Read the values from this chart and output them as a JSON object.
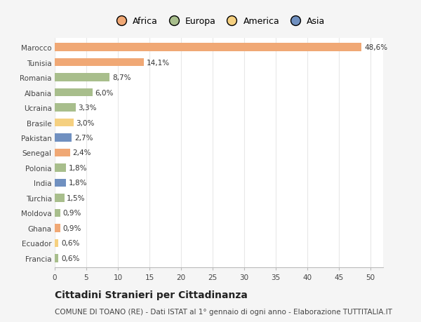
{
  "countries": [
    "Marocco",
    "Tunisia",
    "Romania",
    "Albania",
    "Ucraina",
    "Brasile",
    "Pakistan",
    "Senegal",
    "Polonia",
    "India",
    "Turchia",
    "Moldova",
    "Ghana",
    "Ecuador",
    "Francia"
  ],
  "values": [
    48.6,
    14.1,
    8.7,
    6.0,
    3.3,
    3.0,
    2.7,
    2.4,
    1.8,
    1.8,
    1.5,
    0.9,
    0.9,
    0.6,
    0.6
  ],
  "labels": [
    "48,6%",
    "14,1%",
    "8,7%",
    "6,0%",
    "3,3%",
    "3,0%",
    "2,7%",
    "2,4%",
    "1,8%",
    "1,8%",
    "1,5%",
    "0,9%",
    "0,9%",
    "0,6%",
    "0,6%"
  ],
  "colors": [
    "#F0A875",
    "#F0A875",
    "#A8BE8C",
    "#A8BE8C",
    "#A8BE8C",
    "#F5D080",
    "#7090C0",
    "#F0A875",
    "#A8BE8C",
    "#7090C0",
    "#A8BE8C",
    "#A8BE8C",
    "#F0A875",
    "#F5D080",
    "#A8BE8C"
  ],
  "legend_labels": [
    "Africa",
    "Europa",
    "America",
    "Asia"
  ],
  "legend_colors": [
    "#F0A875",
    "#A8BE8C",
    "#F5D080",
    "#7090C0"
  ],
  "title": "Cittadini Stranieri per Cittadinanza",
  "subtitle": "COMUNE DI TOANO (RE) - Dati ISTAT al 1° gennaio di ogni anno - Elaborazione TUTTITALIA.IT",
  "xlim": [
    0,
    52
  ],
  "xticks": [
    0,
    5,
    10,
    15,
    20,
    25,
    30,
    35,
    40,
    45,
    50
  ],
  "bg_color": "#f5f5f5",
  "plot_bg_color": "#ffffff",
  "title_fontsize": 10,
  "subtitle_fontsize": 7.5,
  "label_fontsize": 7.5,
  "tick_fontsize": 7.5,
  "legend_fontsize": 9
}
